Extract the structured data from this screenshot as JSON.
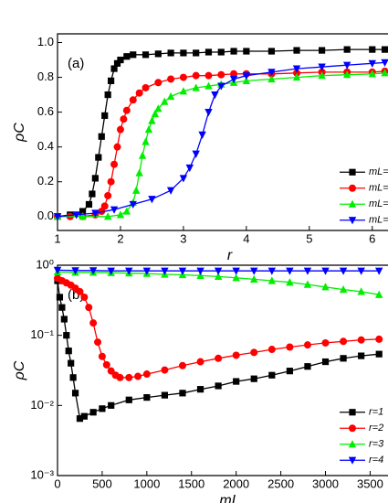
{
  "chart_data": [
    {
      "type": "line",
      "annotation": "(a)",
      "xlabel": "r",
      "ylabel": "ρC",
      "xlim": [
        1,
        6.25
      ],
      "xticks": [
        1,
        2,
        3,
        4,
        5,
        6
      ],
      "ylim": [
        -0.08,
        1.05
      ],
      "yticks": [
        {
          "value": 0,
          "label": "0.0"
        },
        0.2,
        0.4,
        0.6,
        0.8,
        {
          "value": 1,
          "label": "1.0"
        }
      ],
      "legend": "center right",
      "series": [
        {
          "name": "mL=",
          "color": "#000000",
          "marker": "square",
          "x": [
            1,
            1.2,
            1.4,
            1.5,
            1.55,
            1.6,
            1.65,
            1.7,
            1.75,
            1.8,
            1.85,
            1.9,
            1.95,
            2,
            2.1,
            2.2,
            2.4,
            2.6,
            2.8,
            3,
            3.2,
            3.4,
            3.6,
            3.8,
            4,
            4.4,
            4.8,
            5.2,
            5.6,
            6,
            6.2
          ],
          "values": [
            0,
            0.01,
            0.03,
            0.07,
            0.13,
            0.22,
            0.34,
            0.46,
            0.58,
            0.7,
            0.78,
            0.85,
            0.88,
            0.9,
            0.92,
            0.93,
            0.93,
            0.935,
            0.94,
            0.94,
            0.94,
            0.945,
            0.945,
            0.95,
            0.95,
            0.95,
            0.955,
            0.955,
            0.96,
            0.96,
            0.96
          ]
        },
        {
          "name": "mL=",
          "color": "#ff0000",
          "marker": "circle",
          "x": [
            1,
            1.2,
            1.4,
            1.6,
            1.7,
            1.75,
            1.8,
            1.85,
            1.9,
            1.95,
            2,
            2.05,
            2.1,
            2.2,
            2.3,
            2.4,
            2.6,
            2.8,
            3,
            3.2,
            3.4,
            3.6,
            3.8,
            4,
            4.4,
            4.8,
            5.2,
            5.6,
            6,
            6.2
          ],
          "values": [
            0,
            0,
            0,
            0.01,
            0.03,
            0.06,
            0.12,
            0.2,
            0.3,
            0.4,
            0.5,
            0.56,
            0.61,
            0.67,
            0.71,
            0.74,
            0.77,
            0.79,
            0.8,
            0.81,
            0.81,
            0.815,
            0.82,
            0.82,
            0.82,
            0.825,
            0.83,
            0.83,
            0.83,
            0.835
          ]
        },
        {
          "name": "mL=",
          "color": "#00ee00",
          "marker": "triangle-up",
          "x": [
            1,
            1.4,
            1.8,
            2,
            2.1,
            2.2,
            2.25,
            2.3,
            2.35,
            2.4,
            2.45,
            2.5,
            2.55,
            2.6,
            2.7,
            2.8,
            3,
            3.2,
            3.4,
            3.6,
            3.8,
            4,
            4.4,
            4.8,
            5.2,
            5.6,
            6,
            6.2
          ],
          "values": [
            0,
            0,
            0,
            0.01,
            0.03,
            0.08,
            0.15,
            0.25,
            0.35,
            0.43,
            0.5,
            0.55,
            0.59,
            0.62,
            0.66,
            0.69,
            0.72,
            0.74,
            0.75,
            0.76,
            0.77,
            0.78,
            0.79,
            0.8,
            0.81,
            0.815,
            0.82,
            0.825
          ]
        },
        {
          "name": "mL=",
          "color": "#0000ff",
          "marker": "triangle-down",
          "x": [
            1,
            1.3,
            1.6,
            1.9,
            2.2,
            2.5,
            2.8,
            3,
            3.1,
            3.2,
            3.3,
            3.4,
            3.5,
            3.6,
            3.8,
            4,
            4.4,
            4.8,
            5.2,
            5.6,
            6,
            6.2
          ],
          "values": [
            0,
            0.01,
            0.02,
            0.04,
            0.07,
            0.1,
            0.15,
            0.22,
            0.28,
            0.36,
            0.47,
            0.6,
            0.7,
            0.75,
            0.79,
            0.81,
            0.83,
            0.85,
            0.86,
            0.87,
            0.88,
            0.885
          ]
        }
      ]
    },
    {
      "type": "line",
      "annotation": "(b)",
      "xlabel": "mL",
      "ylabel": "ρC",
      "log_y": true,
      "xlim": [
        0,
        3700
      ],
      "xticks": [
        0,
        500,
        1000,
        1500,
        2000,
        2500,
        3000,
        3500
      ],
      "ylim": [
        0.001,
        1
      ],
      "yticks": [
        {
          "value": 0.001,
          "label": "10⁻³"
        },
        {
          "value": 0.01,
          "label": "10⁻²"
        },
        {
          "value": 0.1,
          "label": "10⁻¹"
        },
        {
          "value": 1,
          "label": "10⁰"
        }
      ],
      "legend": "lower right",
      "series": [
        {
          "name": "r=1",
          "color": "#000000",
          "marker": "square",
          "x": [
            0,
            25,
            50,
            75,
            100,
            125,
            150,
            175,
            200,
            250,
            300,
            400,
            500,
            600,
            800,
            1000,
            1200,
            1400,
            1600,
            1800,
            2000,
            2200,
            2400,
            2600,
            2800,
            3000,
            3200,
            3400,
            3600
          ],
          "values": [
            0.6,
            0.35,
            0.25,
            0.17,
            0.1,
            0.06,
            0.04,
            0.025,
            0.015,
            0.0065,
            0.007,
            0.008,
            0.009,
            0.01,
            0.012,
            0.013,
            0.014,
            0.015,
            0.017,
            0.019,
            0.022,
            0.024,
            0.027,
            0.031,
            0.036,
            0.042,
            0.047,
            0.051,
            0.054
          ]
        },
        {
          "name": "r=2",
          "color": "#ff0000",
          "marker": "circle",
          "x": [
            0,
            50,
            100,
            150,
            200,
            250,
            300,
            350,
            400,
            450,
            500,
            550,
            600,
            650,
            700,
            800,
            900,
            1000,
            1200,
            1400,
            1600,
            1800,
            2000,
            2200,
            2400,
            2600,
            2800,
            3000,
            3200,
            3400,
            3600
          ],
          "values": [
            0.65,
            0.6,
            0.56,
            0.52,
            0.47,
            0.42,
            0.35,
            0.25,
            0.15,
            0.08,
            0.05,
            0.038,
            0.031,
            0.027,
            0.025,
            0.025,
            0.026,
            0.028,
            0.032,
            0.037,
            0.042,
            0.047,
            0.052,
            0.057,
            0.063,
            0.068,
            0.073,
            0.078,
            0.082,
            0.086,
            0.088
          ]
        },
        {
          "name": "r=3",
          "color": "#00ee00",
          "marker": "triangle-up",
          "x": [
            0,
            200,
            400,
            600,
            800,
            1000,
            1200,
            1400,
            1600,
            1800,
            2000,
            2200,
            2400,
            2600,
            2800,
            3000,
            3200,
            3400,
            3600
          ],
          "values": [
            0.8,
            0.79,
            0.79,
            0.78,
            0.77,
            0.76,
            0.74,
            0.73,
            0.71,
            0.69,
            0.66,
            0.63,
            0.6,
            0.57,
            0.53,
            0.49,
            0.45,
            0.42,
            0.38
          ]
        },
        {
          "name": "r=4",
          "color": "#0000ff",
          "marker": "triangle-down",
          "x": [
            0,
            200,
            400,
            600,
            800,
            1000,
            1200,
            1400,
            1600,
            1800,
            2000,
            2200,
            2400,
            2600,
            2800,
            3000,
            3200,
            3400,
            3600
          ],
          "values": [
            0.85,
            0.84,
            0.84,
            0.83,
            0.83,
            0.83,
            0.83,
            0.83,
            0.83,
            0.83,
            0.83,
            0.83,
            0.83,
            0.83,
            0.83,
            0.83,
            0.83,
            0.83,
            0.83
          ]
        }
      ]
    }
  ]
}
